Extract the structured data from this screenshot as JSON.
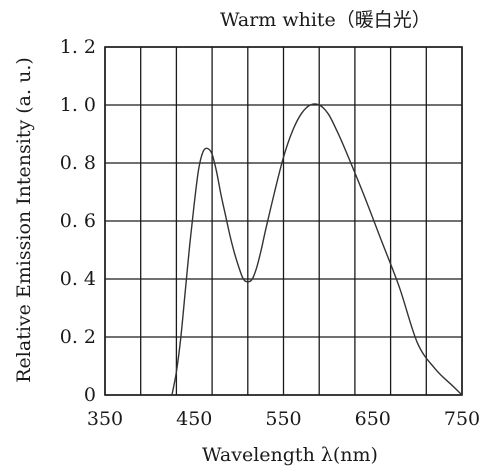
{
  "chart_data": {
    "type": "line",
    "title": "Warm white（暖白光）",
    "xlabel": "Wavelength λ(nm)",
    "ylabel": "Relative Emission Intensity (a. u.)",
    "xlim": [
      350,
      750
    ],
    "ylim": [
      0,
      1.2
    ],
    "x_ticks": [
      "350",
      "450",
      "550",
      "650",
      "750"
    ],
    "y_ticks": [
      "0",
      "0. 2",
      "0. 4",
      "0. 6",
      "0. 8",
      "1. 0",
      "1. 2"
    ],
    "x_grid_values": [
      350,
      390,
      430,
      470,
      510,
      550,
      590,
      630,
      670,
      710,
      750
    ],
    "y_grid_values": [
      0,
      0.2,
      0.4,
      0.6,
      0.8,
      1.0,
      1.2
    ],
    "grid": true,
    "line_color": "#333333",
    "series": [
      {
        "x": [
          425,
          430,
          435,
          440,
          445,
          450,
          455,
          460,
          465,
          470,
          475,
          480,
          485,
          490,
          495,
          500,
          505,
          510,
          515,
          520,
          525,
          530,
          540,
          550,
          560,
          570,
          580,
          590,
          600,
          610,
          620,
          640,
          660,
          680,
          700,
          720,
          740,
          750
        ],
        "y": [
          0.0,
          0.08,
          0.2,
          0.36,
          0.52,
          0.66,
          0.78,
          0.84,
          0.85,
          0.83,
          0.77,
          0.69,
          0.62,
          0.55,
          0.49,
          0.44,
          0.4,
          0.39,
          0.4,
          0.44,
          0.5,
          0.57,
          0.7,
          0.82,
          0.91,
          0.97,
          1.0,
          1.0,
          0.97,
          0.91,
          0.84,
          0.69,
          0.53,
          0.37,
          0.18,
          0.09,
          0.03,
          0.0
        ]
      }
    ]
  }
}
